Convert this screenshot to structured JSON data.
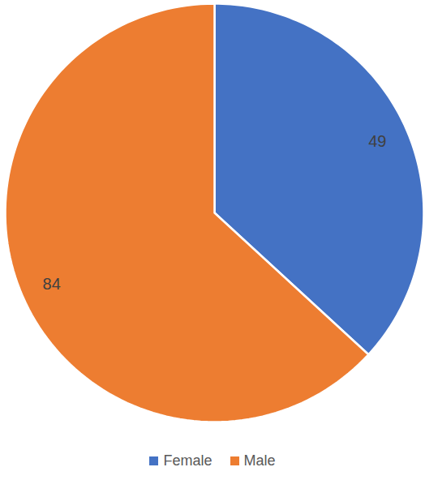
{
  "chart_data": {
    "type": "pie",
    "categories": [
      "Female",
      "Male"
    ],
    "values": [
      49,
      84
    ],
    "colors": [
      "#4472c4",
      "#ed7d31"
    ],
    "data_labels": true,
    "legend": "bottom"
  }
}
